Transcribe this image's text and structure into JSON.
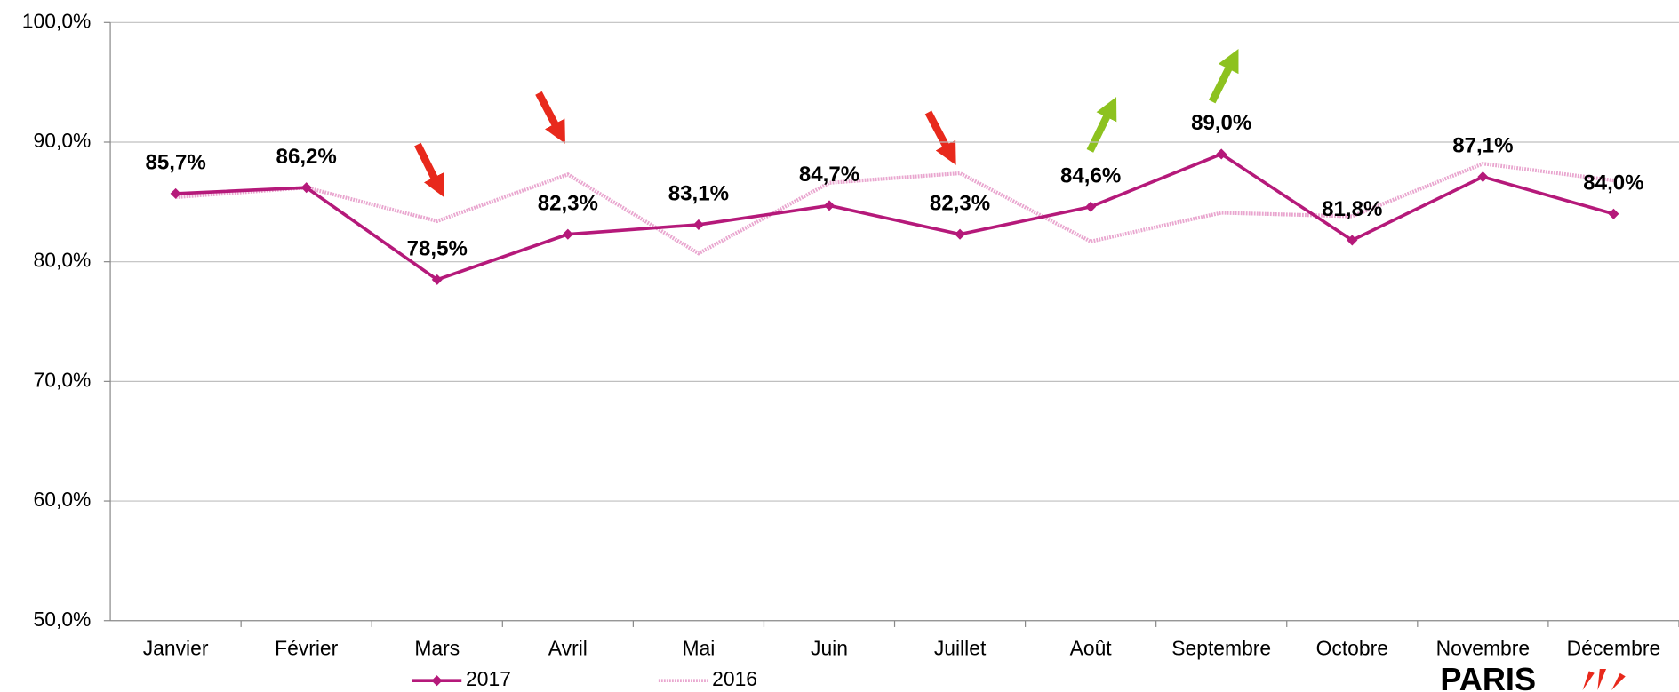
{
  "chart_data": {
    "type": "line",
    "categories": [
      "Janvier",
      "Février",
      "Mars",
      "Avril",
      "Mai",
      "Juin",
      "Juillet",
      "Août",
      "Septembre",
      "Octobre",
      "Novembre",
      "Décembre"
    ],
    "series": [
      {
        "name": "2017",
        "color": "#b5197a",
        "marker": "diamond",
        "values": [
          85.7,
          86.2,
          78.5,
          82.3,
          83.1,
          84.7,
          82.3,
          84.6,
          89.0,
          81.8,
          87.1,
          84.0
        ],
        "value_labels": [
          "85,7%",
          "86,2%",
          "78,5%",
          "82,3%",
          "83,1%",
          "84,7%",
          "82,3%",
          "84,6%",
          "89,0%",
          "81,8%",
          "87,1%",
          "84,0%"
        ],
        "value_label_colors": [
          "#4bb3ad",
          "#4bb3ad",
          "#ffc000",
          "#4bb3ad",
          "#4bb3ad",
          "#4bb3ad",
          "#4bb3ad",
          "#4bb3ad",
          "#4bb3ad",
          "#4bb3ad",
          "#4bb3ad",
          "#4bb3ad"
        ]
      },
      {
        "name": "2016",
        "color": "#e9a6cf",
        "values": [
          85.4,
          86.2,
          83.4,
          87.3,
          80.7,
          86.6,
          87.4,
          81.7,
          84.1,
          83.8,
          88.2,
          86.8
        ]
      }
    ],
    "ylim": [
      50,
      100
    ],
    "yticks": [
      {
        "value": 50,
        "label": "50,0%"
      },
      {
        "value": 60,
        "label": "60,0%"
      },
      {
        "value": 70,
        "label": "70,0%"
      },
      {
        "value": 80,
        "label": "80,0%"
      },
      {
        "value": 90,
        "label": "90,0%"
      },
      {
        "value": 100,
        "label": "100,0%"
      }
    ],
    "grid": true,
    "logo": "PARIS"
  }
}
